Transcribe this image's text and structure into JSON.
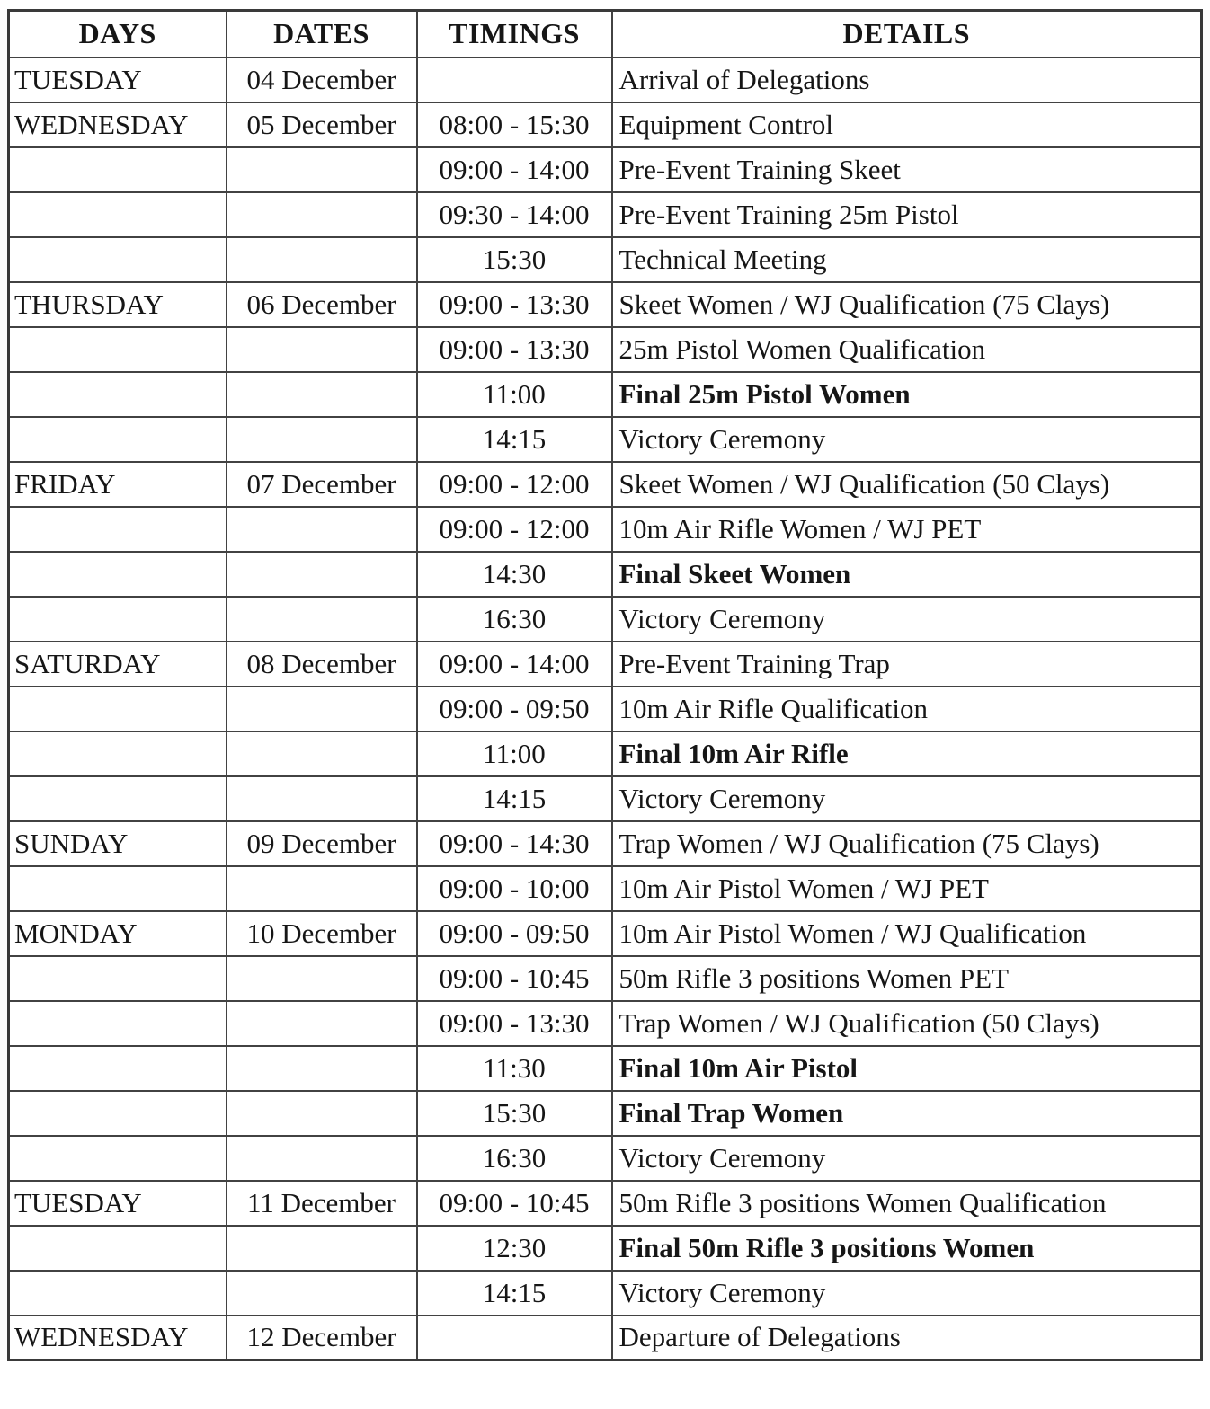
{
  "table": {
    "headers": [
      "DAYS",
      "DATES",
      "TIMINGS",
      "DETAILS"
    ],
    "rows": [
      {
        "day": "TUESDAY",
        "date": "04 December",
        "timing": "",
        "detail": "Arrival of Delegations",
        "bold": false
      },
      {
        "day": "WEDNESDAY",
        "date": "05 December",
        "timing": "08:00 - 15:30",
        "detail": "Equipment Control",
        "bold": false
      },
      {
        "day": "",
        "date": "",
        "timing": "09:00 - 14:00",
        "detail": "Pre-Event Training Skeet",
        "bold": false
      },
      {
        "day": "",
        "date": "",
        "timing": "09:30 - 14:00",
        "detail": "Pre-Event Training 25m Pistol",
        "bold": false
      },
      {
        "day": "",
        "date": "",
        "timing": "15:30",
        "detail": "Technical Meeting",
        "bold": false
      },
      {
        "day": "THURSDAY",
        "date": "06 December",
        "timing": "09:00 - 13:30",
        "detail": "Skeet Women / WJ Qualification (75 Clays)",
        "bold": false
      },
      {
        "day": "",
        "date": "",
        "timing": "09:00 - 13:30",
        "detail": "25m Pistol Women Qualification",
        "bold": false
      },
      {
        "day": "",
        "date": "",
        "timing": "11:00",
        "detail": "Final 25m Pistol Women",
        "bold": true
      },
      {
        "day": "",
        "date": "",
        "timing": "14:15",
        "detail": "Victory Ceremony",
        "bold": false
      },
      {
        "day": "FRIDAY",
        "date": "07 December",
        "timing": "09:00 - 12:00",
        "detail": "Skeet Women / WJ Qualification (50 Clays)",
        "bold": false
      },
      {
        "day": "",
        "date": "",
        "timing": "09:00 - 12:00",
        "detail": "10m Air Rifle Women / WJ PET",
        "bold": false
      },
      {
        "day": "",
        "date": "",
        "timing": "14:30",
        "detail": "Final Skeet Women",
        "bold": true
      },
      {
        "day": "",
        "date": "",
        "timing": "16:30",
        "detail": "Victory Ceremony",
        "bold": false
      },
      {
        "day": "SATURDAY",
        "date": "08 December",
        "timing": "09:00 - 14:00",
        "detail": "Pre-Event Training Trap",
        "bold": false
      },
      {
        "day": "",
        "date": "",
        "timing": "09:00 - 09:50",
        "detail": "10m Air Rifle Qualification",
        "bold": false
      },
      {
        "day": "",
        "date": "",
        "timing": "11:00",
        "detail": "Final 10m Air Rifle",
        "bold": true
      },
      {
        "day": "",
        "date": "",
        "timing": "14:15",
        "detail": "Victory Ceremony",
        "bold": false
      },
      {
        "day": "SUNDAY",
        "date": "09 December",
        "timing": "09:00 - 14:30",
        "detail": "Trap Women / WJ Qualification (75 Clays)",
        "bold": false
      },
      {
        "day": "",
        "date": "",
        "timing": "09:00 - 10:00",
        "detail": "10m Air Pistol Women / WJ PET",
        "bold": false
      },
      {
        "day": "MONDAY",
        "date": "10 December",
        "timing": "09:00 - 09:50",
        "detail": "10m Air Pistol Women / WJ Qualification",
        "bold": false
      },
      {
        "day": "",
        "date": "",
        "timing": "09:00 - 10:45",
        "detail": "50m Rifle 3 positions Women PET",
        "bold": false
      },
      {
        "day": "",
        "date": "",
        "timing": "09:00 - 13:30",
        "detail": "Trap Women / WJ Qualification (50 Clays)",
        "bold": false
      },
      {
        "day": "",
        "date": "",
        "timing": "11:30",
        "detail": "Final 10m Air Pistol",
        "bold": true
      },
      {
        "day": "",
        "date": "",
        "timing": "15:30",
        "detail": "Final Trap Women",
        "bold": true
      },
      {
        "day": "",
        "date": "",
        "timing": "16:30",
        "detail": "Victory Ceremony",
        "bold": false
      },
      {
        "day": "TUESDAY",
        "date": "11 December",
        "timing": "09:00 - 10:45",
        "detail": "50m Rifle 3 positions Women Qualification",
        "bold": false
      },
      {
        "day": "",
        "date": "",
        "timing": "12:30",
        "detail": "Final 50m Rifle 3 positions Women",
        "bold": true
      },
      {
        "day": "",
        "date": "",
        "timing": "14:15",
        "detail": "Victory Ceremony",
        "bold": false
      },
      {
        "day": "WEDNESDAY",
        "date": "12 December",
        "timing": "",
        "detail": "Departure of Delegations",
        "bold": false
      }
    ]
  }
}
